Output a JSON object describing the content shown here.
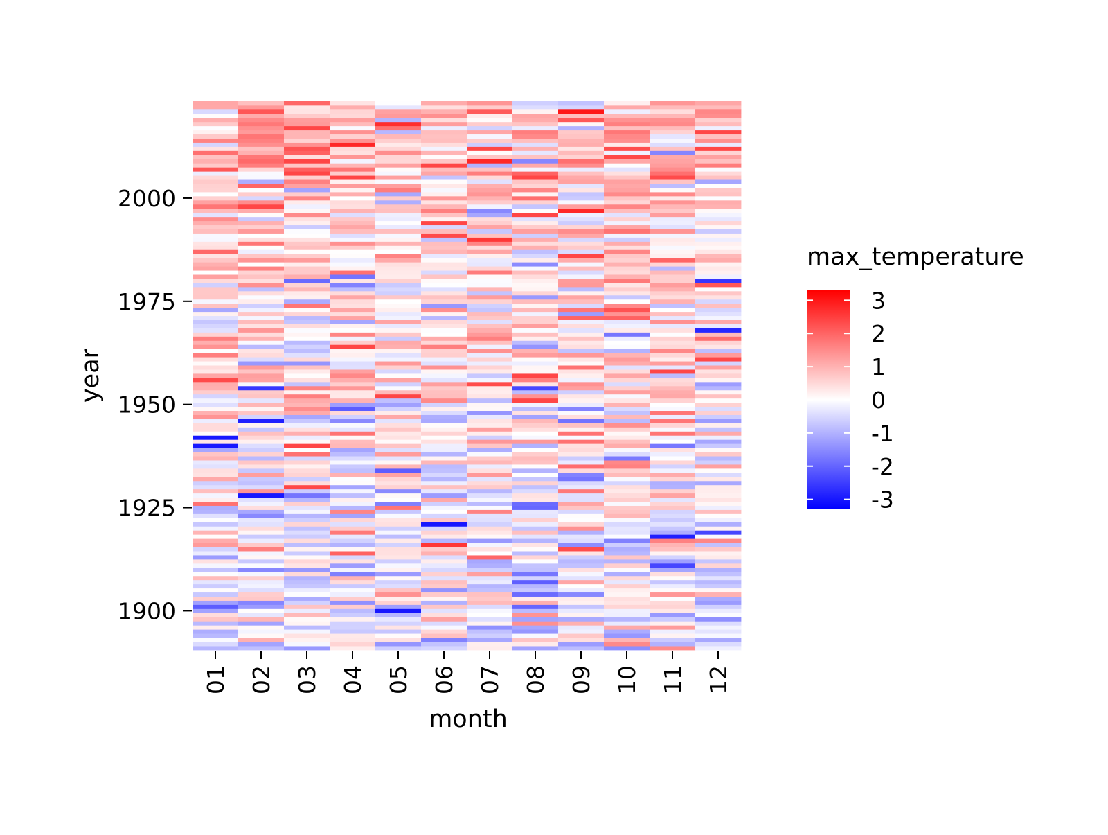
{
  "chart_data": {
    "type": "heatmap",
    "title": "",
    "xlabel": "month",
    "ylabel": "year",
    "x_categories": [
      "01",
      "02",
      "03",
      "04",
      "05",
      "06",
      "07",
      "08",
      "09",
      "10",
      "11",
      "12"
    ],
    "y_range": [
      1891,
      2023
    ],
    "y_order": "ascending-upward",
    "y_ticks": [
      1900,
      1925,
      1950,
      1975,
      2000
    ],
    "colorbar": {
      "label": "max_temperature",
      "min": -3.3,
      "max": 3.3,
      "ticks": [
        3,
        2,
        1,
        0,
        -1,
        -2,
        -3
      ],
      "tick_labels": [
        "3",
        "2",
        "1",
        "0",
        "-1",
        "-2",
        "-3"
      ],
      "colormap": "bwr",
      "colors": {
        "low": "#0000ff",
        "mid": "#ffffff",
        "high": "#ff0000"
      }
    },
    "value_noise_seed": 20240531,
    "notable_cells": [
      {
        "year": 2021,
        "month": "09",
        "value": 3.0
      },
      {
        "year": 2018,
        "month": "05",
        "value": 2.7
      },
      {
        "year": 2013,
        "month": "04",
        "value": 2.8
      },
      {
        "year": 2009,
        "month": "07",
        "value": 2.8
      },
      {
        "year": 1997,
        "month": "09",
        "value": 2.8
      },
      {
        "year": 1990,
        "month": "07",
        "value": 2.6
      },
      {
        "year": 1980,
        "month": "12",
        "value": -2.6
      },
      {
        "year": 1968,
        "month": "12",
        "value": -2.8
      },
      {
        "year": 1954,
        "month": "02",
        "value": -2.6
      },
      {
        "year": 1946,
        "month": "02",
        "value": -2.9
      },
      {
        "year": 1942,
        "month": "01",
        "value": -3.0
      },
      {
        "year": 1940,
        "month": "01",
        "value": -3.0
      },
      {
        "year": 1928,
        "month": "02",
        "value": -3.0
      },
      {
        "year": 1921,
        "month": "06",
        "value": -3.0
      },
      {
        "year": 1918,
        "month": "11",
        "value": -2.9
      },
      {
        "year": 1916,
        "month": "06",
        "value": 2.6
      },
      {
        "year": 1900,
        "month": "05",
        "value": -3.0
      }
    ]
  }
}
